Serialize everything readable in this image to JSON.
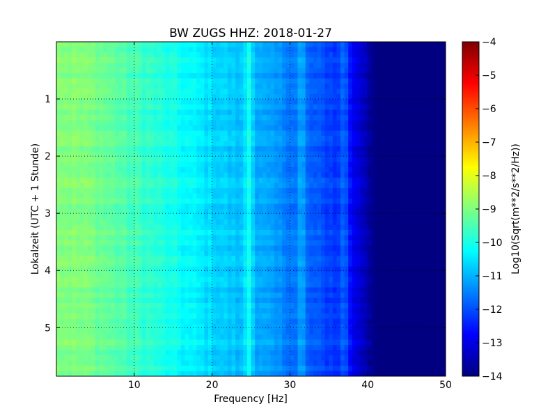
{
  "chart_data": {
    "type": "heatmap",
    "title": "BW ZUGS HHZ: 2018-01-27",
    "xlabel": "Frequency [Hz]",
    "ylabel": "Lokalzeit (UTC + 1 Stunde)",
    "xlim": [
      0,
      50
    ],
    "ylim": [
      5.85,
      0.0
    ],
    "y_inverted": true,
    "grid": true,
    "xticks": [
      10,
      20,
      30,
      40,
      50
    ],
    "yticks": [
      1,
      2,
      3,
      4,
      5
    ],
    "colormap": "jet",
    "colorbar": {
      "label": "Log10(Sqrt(m**2/s**2/Hz))",
      "range": [
        -14,
        -4
      ],
      "ticks": [
        -14,
        -13,
        -12,
        -11,
        -10,
        -9,
        -8,
        -7,
        -6,
        -5,
        -4
      ]
    },
    "spectral_profile": {
      "frequency_hz": [
        0,
        5,
        10,
        15,
        20,
        25,
        30,
        33,
        35,
        37,
        38,
        40,
        41,
        50
      ],
      "log_psd": [
        -8.9,
        -9.1,
        -9.6,
        -10.1,
        -10.6,
        -11.0,
        -11.5,
        -11.9,
        -12.1,
        -12.3,
        -12.8,
        -13.5,
        -14.0,
        -14.0
      ]
    },
    "line_features_hz": [
      24.5,
      25.0,
      31.5,
      37.0
    ]
  }
}
